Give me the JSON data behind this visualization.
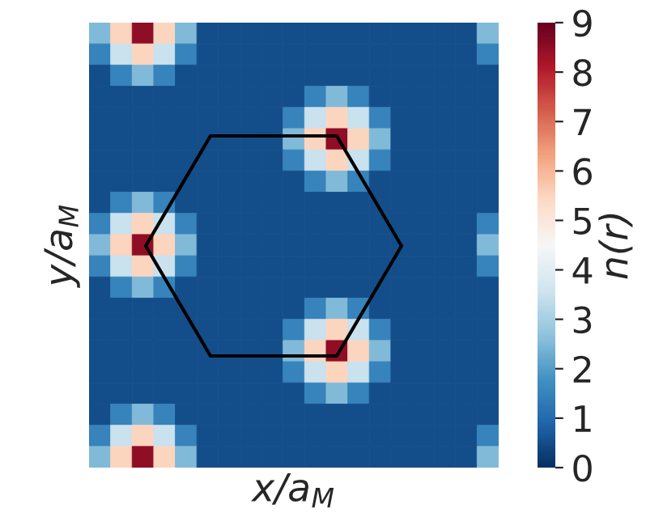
{
  "chart_data": {
    "type": "heatmap",
    "xlabel": "x/a$_{M}$",
    "ylabel": "y/a$_{M}$",
    "clabel": "n(r)",
    "categories": [
      null,
      null,
      null,
      null,
      null,
      null,
      null,
      null,
      null,
      null,
      null,
      null,
      null,
      null,
      null,
      null,
      null,
      null,
      null
    ],
    "y_categories": [
      null,
      null,
      null,
      null,
      null,
      null,
      null,
      null,
      null,
      null,
      null,
      null,
      null,
      null,
      null,
      null,
      null,
      null,
      null,
      null,
      null
    ],
    "cells": [
      [
        2.5,
        5.5,
        8.5,
        5.5,
        2.5,
        0.5,
        0.5,
        0.5,
        0.5,
        0.5,
        0.5,
        0.5,
        0.5,
        0.5,
        0.5,
        0.5,
        0.5,
        0.5,
        2.5
      ],
      [
        1.5,
        3.5,
        5.5,
        3.5,
        1.5,
        0.5,
        0.5,
        0.5,
        0.5,
        0.5,
        0.5,
        0.5,
        0.5,
        0.5,
        0.5,
        0.5,
        0.5,
        0.5,
        1.5
      ],
      [
        0.5,
        1.5,
        2.5,
        1.5,
        0.5,
        0.5,
        0.5,
        0.5,
        0.5,
        0.5,
        0.5,
        0.5,
        0.5,
        0.5,
        0.5,
        0.5,
        0.5,
        0.5,
        0.5
      ],
      [
        0.5,
        0.5,
        0.5,
        0.5,
        0.5,
        0.5,
        0.5,
        0.5,
        0.5,
        0.5,
        1.5,
        2.5,
        1.5,
        0.5,
        0.5,
        0.5,
        0.5,
        0.5,
        0.5
      ],
      [
        0.5,
        0.5,
        0.5,
        0.5,
        0.5,
        0.5,
        0.5,
        0.5,
        0.5,
        1.5,
        3.5,
        5.5,
        3.5,
        1.5,
        0.5,
        0.5,
        0.5,
        0.5,
        0.5
      ],
      [
        0.5,
        0.5,
        0.5,
        0.5,
        0.5,
        0.5,
        0.5,
        0.5,
        0.5,
        2.5,
        5.5,
        8.5,
        5.5,
        2.5,
        0.5,
        0.5,
        0.5,
        0.5,
        0.5
      ],
      [
        0.5,
        0.5,
        0.5,
        0.5,
        0.5,
        0.5,
        0.5,
        0.5,
        0.5,
        1.5,
        3.5,
        5.5,
        3.5,
        1.5,
        0.5,
        0.5,
        0.5,
        0.5,
        0.5
      ],
      [
        0.5,
        0.5,
        0.5,
        0.5,
        0.5,
        0.5,
        0.5,
        0.5,
        0.5,
        0.5,
        1.5,
        2.5,
        1.5,
        0.5,
        0.5,
        0.5,
        0.5,
        0.5,
        0.5
      ],
      [
        0.5,
        1.5,
        2.5,
        1.5,
        0.5,
        0.5,
        0.5,
        0.5,
        0.5,
        0.5,
        0.5,
        0.5,
        0.5,
        0.5,
        0.5,
        0.5,
        0.5,
        0.5,
        0.5
      ],
      [
        1.5,
        3.5,
        5.5,
        3.5,
        1.5,
        0.5,
        0.5,
        0.5,
        0.5,
        0.5,
        0.5,
        0.5,
        0.5,
        0.5,
        0.5,
        0.5,
        0.5,
        0.5,
        1.5
      ],
      [
        2.5,
        5.5,
        8.5,
        5.5,
        2.5,
        0.5,
        0.5,
        0.5,
        0.5,
        0.5,
        0.5,
        0.5,
        0.5,
        0.5,
        0.5,
        0.5,
        0.5,
        0.5,
        2.5
      ],
      [
        1.5,
        3.5,
        5.5,
        3.5,
        1.5,
        0.5,
        0.5,
        0.5,
        0.5,
        0.5,
        0.5,
        0.5,
        0.5,
        0.5,
        0.5,
        0.5,
        0.5,
        0.5,
        1.5
      ],
      [
        0.5,
        1.5,
        2.5,
        1.5,
        0.5,
        0.5,
        0.5,
        0.5,
        0.5,
        0.5,
        0.5,
        0.5,
        0.5,
        0.5,
        0.5,
        0.5,
        0.5,
        0.5,
        0.5
      ],
      [
        0.5,
        0.5,
        0.5,
        0.5,
        0.5,
        0.5,
        0.5,
        0.5,
        0.5,
        0.5,
        1.5,
        2.5,
        1.5,
        0.5,
        0.5,
        0.5,
        0.5,
        0.5,
        0.5
      ],
      [
        0.5,
        0.5,
        0.5,
        0.5,
        0.5,
        0.5,
        0.5,
        0.5,
        0.5,
        1.5,
        3.5,
        5.5,
        3.5,
        1.5,
        0.5,
        0.5,
        0.5,
        0.5,
        0.5
      ],
      [
        0.5,
        0.5,
        0.5,
        0.5,
        0.5,
        0.5,
        0.5,
        0.5,
        0.5,
        2.5,
        5.5,
        8.5,
        5.5,
        2.5,
        0.5,
        0.5,
        0.5,
        0.5,
        0.5
      ],
      [
        0.5,
        0.5,
        0.5,
        0.5,
        0.5,
        0.5,
        0.5,
        0.5,
        0.5,
        1.5,
        3.5,
        5.5,
        3.5,
        1.5,
        0.5,
        0.5,
        0.5,
        0.5,
        0.5
      ],
      [
        0.5,
        0.5,
        0.5,
        0.5,
        0.5,
        0.5,
        0.5,
        0.5,
        0.5,
        0.5,
        1.5,
        2.5,
        1.5,
        0.5,
        0.5,
        0.5,
        0.5,
        0.5,
        0.5
      ],
      [
        0.5,
        1.5,
        2.5,
        1.5,
        0.5,
        0.5,
        0.5,
        0.5,
        0.5,
        0.5,
        0.5,
        0.5,
        0.5,
        0.5,
        0.5,
        0.5,
        0.5,
        0.5,
        0.5
      ],
      [
        1.5,
        3.5,
        5.5,
        3.5,
        1.5,
        0.5,
        0.5,
        0.5,
        0.5,
        0.5,
        0.5,
        0.5,
        0.5,
        0.5,
        0.5,
        0.5,
        0.5,
        0.5,
        1.5
      ],
      [
        2.5,
        5.5,
        8.5,
        5.5,
        2.5,
        0.5,
        0.5,
        0.5,
        0.5,
        0.5,
        0.5,
        0.5,
        0.5,
        0.5,
        0.5,
        0.5,
        0.5,
        0.5,
        2.5
      ]
    ],
    "clim": [
      0,
      9
    ],
    "cticks": [
      0,
      1,
      2,
      3,
      4,
      5,
      6,
      7,
      8,
      9
    ],
    "tick_labels": false
  }
}
